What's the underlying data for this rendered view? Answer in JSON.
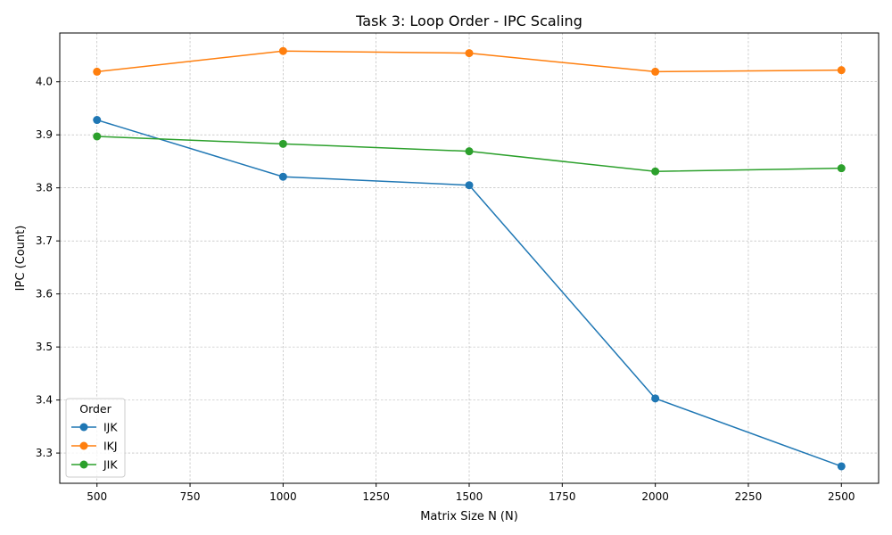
{
  "chart_data": {
    "type": "line",
    "title": "Task 3: Loop Order - IPC Scaling",
    "xlabel": "Matrix Size N (N)",
    "ylabel": "IPC (Count)",
    "x": [
      500,
      1000,
      1500,
      2000,
      2500
    ],
    "xlim": [
      400,
      2600
    ],
    "ylim": [
      3.243,
      4.092
    ],
    "xticks": [
      500,
      750,
      1000,
      1250,
      1500,
      1750,
      2000,
      2250,
      2500
    ],
    "yticks": [
      3.3,
      3.4,
      3.5,
      3.6,
      3.7,
      3.8,
      3.9,
      4.0
    ],
    "grid": true,
    "legend": {
      "title": "Order",
      "placement": "lower-left"
    },
    "series": [
      {
        "name": "IJK",
        "color": "#1f77b4",
        "values": [
          3.928,
          3.821,
          3.805,
          3.403,
          3.275
        ]
      },
      {
        "name": "IKJ",
        "color": "#ff7f0e",
        "values": [
          4.019,
          4.058,
          4.054,
          4.019,
          4.022
        ]
      },
      {
        "name": "JIK",
        "color": "#2ca02c",
        "values": [
          3.897,
          3.883,
          3.869,
          3.831,
          3.837
        ]
      }
    ]
  }
}
